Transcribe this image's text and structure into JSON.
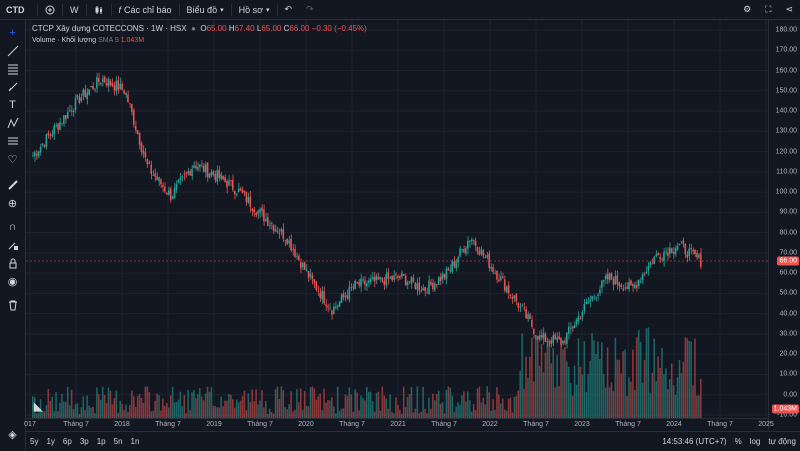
{
  "topbar": {
    "symbol": "CTD",
    "add_icon": "plus-circle-icon",
    "interval": "W",
    "indicators_label": "Các chỉ báo",
    "chart_type_label": "Biểu đồ",
    "profile_label": "Hồ sơ"
  },
  "legend": {
    "title": "CTCP Xây dựng COTECCONS · 1W · HSX",
    "o_label": "O",
    "o_val": "65.00",
    "h_label": "H",
    "h_val": "67.40",
    "l_label": "L",
    "l_val": "65.00",
    "c_label": "C",
    "c_val": "66.00",
    "change": "−0.30 (−0.45%)",
    "volume_label": "Volume · Khối lượng",
    "sma_label": "SMA 9",
    "volume_val": "1.043M"
  },
  "price_axis": {
    "labels": [
      "180.00",
      "170.00",
      "160.00",
      "150.00",
      "140.00",
      "130.00",
      "120.00",
      "110.00",
      "100.00",
      "90.00",
      "80.00",
      "70.00",
      "60.00",
      "50.00",
      "40.00",
      "30.00",
      "20.00",
      "10.00",
      "0.00",
      "-10.00"
    ],
    "last_price": "66.00",
    "last_volume": "1.043M"
  },
  "time_axis": {
    "labels": [
      "017",
      "Tháng 7",
      "2018",
      "Tháng 7",
      "2019",
      "Tháng 7",
      "2020",
      "Tháng 7",
      "2021",
      "Tháng 7",
      "2022",
      "Tháng 7",
      "2023",
      "Tháng 7",
      "2024",
      "Tháng 7",
      "2025"
    ]
  },
  "bottombar": {
    "ranges": [
      "5y",
      "1y",
      "6p",
      "3p",
      "1p",
      "5n",
      "1n"
    ],
    "clock": "14:53:46 (UTC+7)",
    "percent": "%",
    "log": "log",
    "auto": "tự động"
  },
  "colors": {
    "up": "#26a69a",
    "down": "#ef5350",
    "bg": "#131722",
    "grid": "#1f2330"
  },
  "chart_data": {
    "type": "candlestick",
    "interval": "1W",
    "ylim": [
      -10,
      180
    ],
    "x": [
      "2017-03",
      "2017-07",
      "2017-10",
      "2018-01",
      "2018-04",
      "2018-07",
      "2018-10",
      "2019-01",
      "2019-04",
      "2019-07",
      "2019-10",
      "2020-01",
      "2020-04",
      "2020-07",
      "2020-10",
      "2021-01",
      "2021-04",
      "2021-07",
      "2021-10",
      "2022-01",
      "2022-04",
      "2022-07",
      "2022-10",
      "2023-01",
      "2023-04",
      "2023-07",
      "2023-10",
      "2024-01",
      "2024-04",
      "2024-07"
    ],
    "close": [
      118,
      132,
      146,
      156,
      150,
      112,
      98,
      114,
      108,
      100,
      88,
      78,
      58,
      42,
      54,
      56,
      58,
      52,
      60,
      78,
      62,
      46,
      28,
      26,
      44,
      58,
      52,
      68,
      74,
      66
    ],
    "volume_range": [
      0,
      1.3
    ]
  }
}
